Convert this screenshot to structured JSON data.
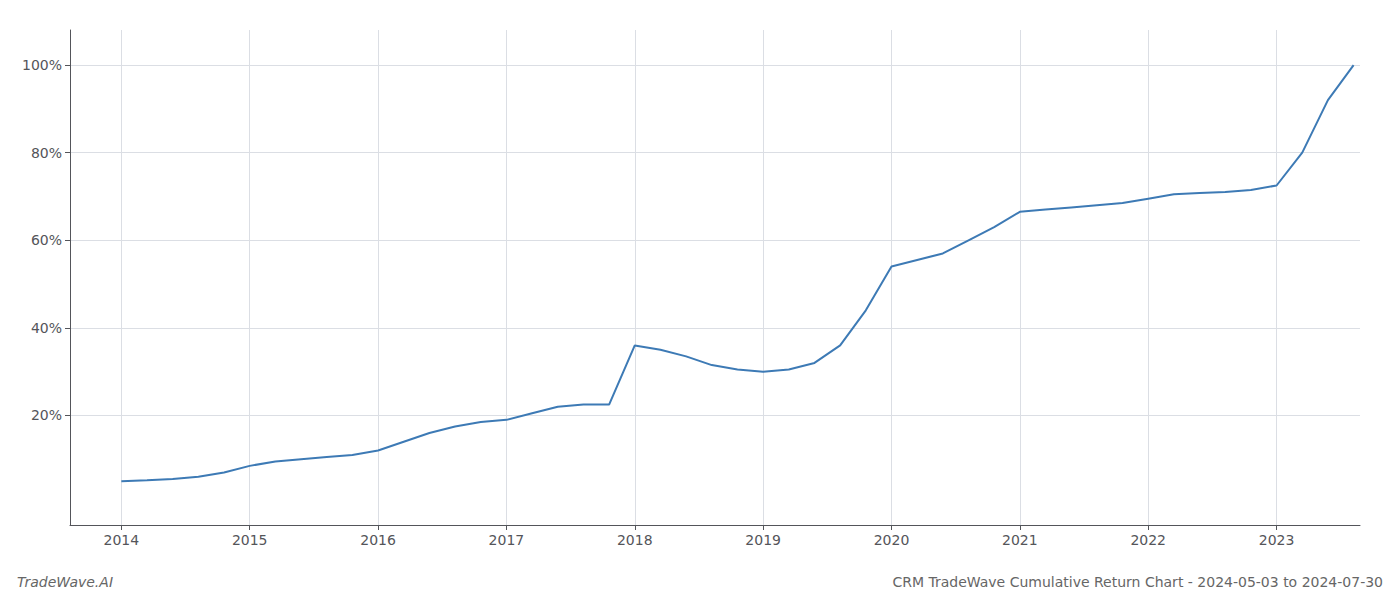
{
  "chart_data": {
    "type": "line",
    "title": "CRM TradeWave Cumulative Return Chart - 2024-05-03 to 2024-07-30",
    "annotations": [
      "TradeWave.AI"
    ],
    "x": [
      2014.0,
      2014.2,
      2014.4,
      2014.6,
      2014.8,
      2015.0,
      2015.2,
      2015.4,
      2015.6,
      2015.8,
      2016.0,
      2016.2,
      2016.4,
      2016.6,
      2016.8,
      2017.0,
      2017.2,
      2017.4,
      2017.6,
      2017.8,
      2018.0,
      2018.2,
      2018.4,
      2018.6,
      2018.8,
      2019.0,
      2019.2,
      2019.4,
      2019.6,
      2019.8,
      2020.0,
      2020.2,
      2020.4,
      2020.6,
      2020.8,
      2021.0,
      2021.2,
      2021.4,
      2021.6,
      2021.8,
      2022.0,
      2022.2,
      2022.4,
      2022.6,
      2022.8,
      2023.0,
      2023.2,
      2023.4,
      2023.6
    ],
    "values": [
      5.0,
      5.2,
      5.5,
      6.0,
      7.0,
      8.5,
      9.5,
      10.0,
      10.5,
      11.0,
      12.0,
      14.0,
      16.0,
      17.5,
      18.5,
      19.0,
      20.5,
      22.0,
      22.5,
      22.5,
      36.0,
      35.0,
      33.5,
      31.5,
      30.5,
      30.0,
      30.5,
      32.0,
      36.0,
      44.0,
      54.0,
      55.5,
      57.0,
      60.0,
      63.0,
      66.5,
      67.0,
      67.5,
      68.0,
      68.5,
      69.5,
      70.5,
      70.8,
      71.0,
      71.5,
      72.5,
      80.0,
      92.0,
      100.0
    ],
    "color": "#3d7ab5",
    "xlim": [
      2013.6,
      2023.65
    ],
    "xticks": [
      2014,
      2015,
      2016,
      2017,
      2018,
      2019,
      2020,
      2021,
      2022,
      2023
    ],
    "ylim": [
      -5,
      108
    ],
    "yticks": [
      {
        "value": 20,
        "label": "20%"
      },
      {
        "value": 40,
        "label": "40%"
      },
      {
        "value": 60,
        "label": "60%"
      },
      {
        "value": 80,
        "label": "80%"
      },
      {
        "value": 100,
        "label": "100%"
      }
    ],
    "grid": true
  }
}
